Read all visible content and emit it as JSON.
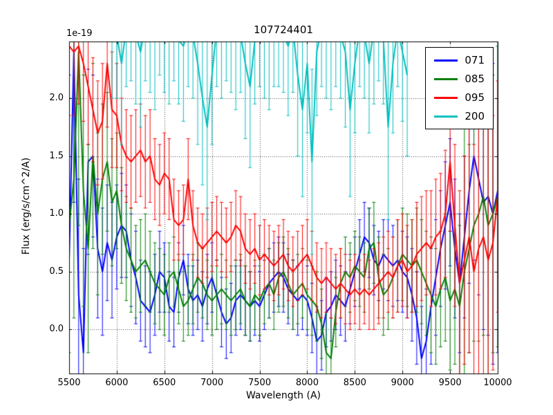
{
  "chart_data": {
    "type": "line",
    "title": "107724401",
    "xlabel": "Wavelength (A)",
    "ylabel": "Flux (erg/s/cm^2/A)",
    "y_scale_label": "1e-19",
    "xlim": [
      5500,
      10000
    ],
    "ylim": [
      -0.38,
      2.49
    ],
    "grid": "dotted",
    "error_bars": true,
    "legend_position": "upper right",
    "xticks": [
      5500,
      6000,
      6500,
      7000,
      7500,
      8000,
      8500,
      9000,
      9500,
      10000
    ],
    "xtick_labels": [
      "5500",
      "6000",
      "6500",
      "7000",
      "7500",
      "8000",
      "8500",
      "9000",
      "9500",
      "10000"
    ],
    "yticks": [
      0.0,
      0.5,
      1.0,
      1.5,
      2.0
    ],
    "ytick_labels": [
      "0.0",
      "0.5",
      "1.0",
      "1.5",
      "2.0"
    ],
    "x": [
      5500,
      5550,
      5600,
      5650,
      5700,
      5750,
      5800,
      5850,
      5900,
      5950,
      6000,
      6050,
      6100,
      6150,
      6200,
      6250,
      6300,
      6350,
      6400,
      6450,
      6500,
      6550,
      6600,
      6650,
      6700,
      6750,
      6800,
      6850,
      6900,
      6950,
      7000,
      7050,
      7100,
      7150,
      7200,
      7250,
      7300,
      7350,
      7400,
      7450,
      7500,
      7550,
      7600,
      7650,
      7700,
      7750,
      7800,
      7850,
      7900,
      7950,
      8000,
      8050,
      8100,
      8150,
      8200,
      8250,
      8300,
      8350,
      8400,
      8450,
      8500,
      8550,
      8600,
      8650,
      8700,
      8750,
      8800,
      8850,
      8900,
      8950,
      9000,
      9050,
      9100,
      9150,
      9200,
      9250,
      9300,
      9350,
      9400,
      9450,
      9500,
      9550,
      9600,
      9650,
      9700,
      9750,
      9800,
      9850,
      9900,
      9950,
      10000
    ],
    "series": [
      {
        "name": "071",
        "color": "#0000ff",
        "y": [
          0.6,
          2.4,
          0.3,
          -0.2,
          1.45,
          1.5,
          0.7,
          0.5,
          0.75,
          0.6,
          0.8,
          0.9,
          0.85,
          0.6,
          0.45,
          0.25,
          0.2,
          0.15,
          0.3,
          0.5,
          0.45,
          0.2,
          0.15,
          0.45,
          0.6,
          0.35,
          0.25,
          0.3,
          0.2,
          0.35,
          0.45,
          0.3,
          0.15,
          0.05,
          0.1,
          0.25,
          0.3,
          0.25,
          0.2,
          0.25,
          0.2,
          0.3,
          0.4,
          0.45,
          0.5,
          0.45,
          0.35,
          0.3,
          0.25,
          0.3,
          0.25,
          0.1,
          -0.1,
          -0.05,
          0.15,
          0.2,
          0.3,
          0.25,
          0.2,
          0.35,
          0.5,
          0.65,
          0.8,
          0.75,
          0.6,
          0.55,
          0.65,
          0.6,
          0.55,
          0.6,
          0.5,
          0.45,
          0.3,
          0.1,
          -0.25,
          -0.1,
          0.2,
          0.45,
          0.7,
          0.9,
          1.1,
          0.7,
          0.4,
          0.8,
          1.2,
          1.5,
          1.3,
          1.1,
          1.15,
          1.0,
          1.2
        ],
        "err": [
          1.6,
          1.3,
          1.0,
          0.9,
          0.8,
          0.7,
          0.6,
          0.55,
          0.5,
          0.5,
          0.45,
          0.45,
          0.4,
          0.4,
          0.4,
          0.35,
          0.35,
          0.35,
          0.35,
          0.35,
          0.3,
          0.3,
          0.3,
          0.3,
          0.3,
          0.3,
          0.3,
          0.3,
          0.3,
          0.3,
          0.3,
          0.3,
          0.3,
          0.3,
          0.3,
          0.3,
          0.3,
          0.3,
          0.3,
          0.3,
          0.3,
          0.3,
          0.3,
          0.3,
          0.3,
          0.3,
          0.3,
          0.3,
          0.3,
          0.3,
          0.3,
          0.3,
          0.3,
          0.3,
          0.3,
          0.3,
          0.3,
          0.3,
          0.3,
          0.3,
          0.3,
          0.3,
          0.3,
          0.3,
          0.3,
          0.3,
          0.3,
          0.35,
          0.35,
          0.35,
          0.35,
          0.35,
          0.4,
          0.4,
          0.45,
          0.45,
          0.5,
          0.5,
          0.5,
          0.55,
          0.55,
          0.6,
          0.6,
          0.7,
          0.8,
          0.9,
          1.0,
          1.1,
          1.2,
          1.3,
          1.4
        ]
      },
      {
        "name": "085",
        "color": "#008000",
        "y": [
          0.9,
          1.3,
          2.4,
          1.2,
          0.7,
          1.5,
          1.0,
          1.3,
          1.45,
          1.1,
          1.2,
          0.9,
          0.7,
          0.6,
          0.5,
          0.55,
          0.6,
          0.5,
          0.4,
          0.35,
          0.3,
          0.45,
          0.5,
          0.35,
          0.2,
          0.25,
          0.35,
          0.45,
          0.4,
          0.3,
          0.25,
          0.3,
          0.35,
          0.3,
          0.25,
          0.3,
          0.35,
          0.25,
          0.2,
          0.3,
          0.25,
          0.35,
          0.4,
          0.3,
          0.45,
          0.5,
          0.4,
          0.3,
          0.35,
          0.4,
          0.3,
          0.25,
          0.2,
          0.05,
          -0.2,
          -0.25,
          0.15,
          0.4,
          0.5,
          0.45,
          0.55,
          0.5,
          0.45,
          0.7,
          0.75,
          0.45,
          0.3,
          0.35,
          0.45,
          0.55,
          0.65,
          0.6,
          0.55,
          0.6,
          0.5,
          0.4,
          0.3,
          0.2,
          0.35,
          0.45,
          0.25,
          0.35,
          0.2,
          0.5,
          0.7,
          0.9,
          1.0,
          1.15,
          0.9,
          1.0,
          1.15
        ],
        "err": [
          1.1,
          1.2,
          1.5,
          1.0,
          0.9,
          0.8,
          0.7,
          0.65,
          0.6,
          0.55,
          0.5,
          0.5,
          0.45,
          0.45,
          0.4,
          0.4,
          0.4,
          0.35,
          0.35,
          0.35,
          0.35,
          0.3,
          0.3,
          0.3,
          0.3,
          0.3,
          0.3,
          0.3,
          0.3,
          0.3,
          0.3,
          0.3,
          0.3,
          0.3,
          0.3,
          0.3,
          0.3,
          0.3,
          0.3,
          0.3,
          0.3,
          0.3,
          0.3,
          0.3,
          0.3,
          0.3,
          0.3,
          0.3,
          0.3,
          0.3,
          0.3,
          0.3,
          0.3,
          0.3,
          0.35,
          0.35,
          0.3,
          0.3,
          0.3,
          0.3,
          0.3,
          0.3,
          0.3,
          0.35,
          0.35,
          0.35,
          0.35,
          0.35,
          0.35,
          0.4,
          0.4,
          0.4,
          0.4,
          0.45,
          0.45,
          0.45,
          0.5,
          0.5,
          0.5,
          0.55,
          0.6,
          0.65,
          0.7,
          1.4,
          0.9,
          1.0,
          1.1,
          1.2,
          1.5,
          1.2,
          1.3
        ]
      },
      {
        "name": "095",
        "color": "#ff0000",
        "y": [
          2.45,
          2.4,
          2.45,
          2.3,
          2.1,
          1.9,
          1.7,
          1.8,
          2.3,
          1.9,
          1.85,
          1.6,
          1.5,
          1.45,
          1.5,
          1.55,
          1.45,
          1.5,
          1.3,
          1.25,
          1.35,
          1.3,
          0.95,
          0.9,
          0.95,
          1.3,
          0.9,
          0.75,
          0.7,
          0.75,
          0.8,
          0.85,
          0.8,
          0.75,
          0.8,
          0.9,
          0.85,
          0.7,
          0.65,
          0.7,
          0.6,
          0.65,
          0.6,
          0.55,
          0.6,
          0.65,
          0.55,
          0.5,
          0.55,
          0.6,
          0.65,
          0.55,
          0.45,
          0.4,
          0.45,
          0.4,
          0.35,
          0.4,
          0.35,
          0.3,
          0.35,
          0.3,
          0.35,
          0.3,
          0.35,
          0.4,
          0.45,
          0.5,
          0.45,
          0.55,
          0.6,
          0.5,
          0.55,
          0.65,
          0.7,
          0.75,
          0.7,
          0.8,
          0.85,
          1.0,
          1.45,
          0.9,
          0.4,
          0.6,
          0.8,
          0.5,
          0.7,
          0.8,
          0.6,
          0.75,
          1.15
        ],
        "err": [
          0.6,
          0.55,
          0.5,
          0.5,
          0.5,
          0.45,
          0.45,
          0.5,
          0.55,
          0.5,
          0.45,
          0.4,
          0.4,
          0.4,
          0.4,
          0.4,
          0.4,
          0.4,
          0.35,
          0.35,
          0.35,
          0.35,
          0.35,
          0.3,
          0.3,
          0.35,
          0.3,
          0.3,
          0.3,
          0.3,
          0.3,
          0.3,
          0.3,
          0.3,
          0.3,
          0.3,
          0.3,
          0.3,
          0.3,
          0.3,
          0.3,
          0.3,
          0.3,
          0.3,
          0.3,
          0.3,
          0.3,
          0.3,
          0.3,
          0.3,
          0.3,
          0.3,
          0.3,
          0.3,
          0.3,
          0.3,
          0.3,
          0.3,
          0.3,
          0.3,
          0.3,
          0.3,
          0.3,
          0.3,
          0.35,
          0.35,
          0.35,
          0.35,
          0.35,
          0.4,
          0.4,
          0.4,
          0.4,
          0.45,
          0.45,
          0.45,
          0.5,
          0.5,
          0.5,
          0.55,
          0.6,
          0.7,
          0.8,
          0.9,
          1.0,
          1.1,
          1.2,
          1.3,
          1.2,
          1.1,
          1.0
        ]
      },
      {
        "name": "200",
        "color": "#00bfbf",
        "y": [
          null,
          null,
          null,
          null,
          null,
          null,
          null,
          null,
          null,
          2.6,
          2.55,
          2.3,
          2.6,
          2.7,
          2.55,
          2.4,
          2.65,
          2.6,
          2.5,
          2.7,
          2.6,
          2.55,
          2.65,
          2.5,
          2.45,
          2.6,
          2.55,
          2.3,
          2.0,
          1.75,
          2.2,
          2.6,
          2.55,
          2.65,
          2.6,
          2.5,
          2.55,
          2.3,
          2.1,
          2.5,
          2.6,
          2.55,
          2.5,
          2.6,
          2.65,
          2.55,
          2.45,
          2.6,
          2.2,
          1.9,
          2.3,
          1.45,
          2.4,
          2.6,
          2.55,
          2.5,
          2.6,
          2.55,
          2.4,
          1.9,
          2.3,
          2.6,
          2.55,
          2.3,
          2.6,
          2.65,
          2.5,
          1.75,
          2.3,
          2.6,
          2.4,
          2.2,
          null,
          null,
          null,
          null,
          null,
          null,
          null,
          null,
          null,
          null,
          null,
          null,
          null,
          null,
          null,
          null,
          null,
          null,
          null
        ],
        "err": [
          null,
          null,
          null,
          null,
          null,
          null,
          null,
          null,
          null,
          0.6,
          0.55,
          0.7,
          0.5,
          0.55,
          0.6,
          0.65,
          0.5,
          0.55,
          0.6,
          0.5,
          0.55,
          0.6,
          0.5,
          0.55,
          0.65,
          0.5,
          0.55,
          0.7,
          0.75,
          0.8,
          0.6,
          0.5,
          0.55,
          0.5,
          0.55,
          0.6,
          0.5,
          0.65,
          0.7,
          0.55,
          0.5,
          0.55,
          0.6,
          0.5,
          0.55,
          0.5,
          0.6,
          0.55,
          0.7,
          0.75,
          0.6,
          0.8,
          0.55,
          0.5,
          0.55,
          0.6,
          0.5,
          0.55,
          0.65,
          0.75,
          0.6,
          0.5,
          0.55,
          0.6,
          0.65,
          0.5,
          0.55,
          0.8,
          0.6,
          0.5,
          0.6,
          0.7,
          null,
          null,
          null,
          null,
          null,
          null,
          null,
          null,
          null,
          null,
          null,
          null,
          null,
          null,
          null,
          null,
          null,
          null,
          null
        ]
      }
    ]
  }
}
